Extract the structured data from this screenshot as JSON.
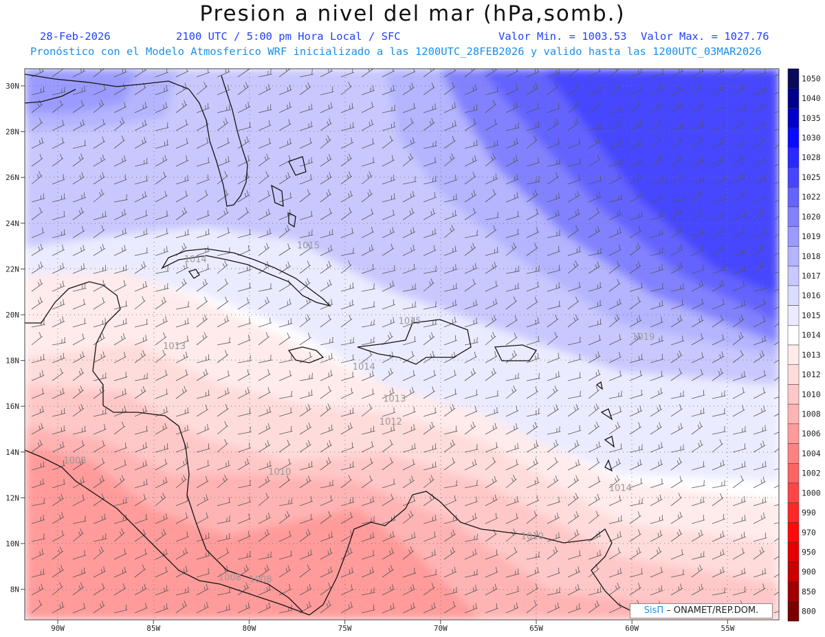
{
  "header": {
    "title": "Presion a nivel del mar (hPa,somb.)",
    "date": "28-Feb-2026",
    "time_info": "2100 UTC / 5:00 pm Hora Local / SFC",
    "min_value": "Valor Min. = 1003.53",
    "max_value": "Valor Max. = 1027.76",
    "model_info": "Pronóstico con el Modelo Atmosferico WRF inicializado a las 1200UTC_28FEB2026 y valido hasta las  1200UTC_03MAR2026"
  },
  "map": {
    "lat_labels": [
      "30N",
      "28N",
      "26N",
      "24N",
      "22N",
      "20N",
      "18N",
      "16N",
      "14N",
      "12N",
      "10N",
      "8N"
    ],
    "lon_labels": [
      "90W",
      "85W",
      "80W",
      "75W",
      "70W",
      "65W",
      "60W",
      "55W"
    ],
    "contour_labels": [
      {
        "text": "1015",
        "lat": 22.9,
        "lon": -77.5
      },
      {
        "text": "1014",
        "lat": 22.3,
        "lon": -83.4
      },
      {
        "text": "1013",
        "lat": 18.5,
        "lon": -84.5
      },
      {
        "text": "1015",
        "lat": 19.6,
        "lon": -72.2
      },
      {
        "text": "1019",
        "lat": 18.9,
        "lon": -60.0
      },
      {
        "text": "1014",
        "lat": 17.6,
        "lon": -74.6
      },
      {
        "text": "1013",
        "lat": 16.2,
        "lon": -73.0
      },
      {
        "text": "1012",
        "lat": 15.2,
        "lon": -73.2
      },
      {
        "text": "1010",
        "lat": 13.0,
        "lon": -79.0
      },
      {
        "text": "1008",
        "lat": 13.5,
        "lon": -89.7
      },
      {
        "text": "1014",
        "lat": 12.3,
        "lon": -61.2
      },
      {
        "text": "1010",
        "lat": 10.2,
        "lon": -65.8
      },
      {
        "text": "1008",
        "lat": 8.4,
        "lon": -81.6
      },
      {
        "text": "1008",
        "lat": 8.3,
        "lon": -80.0
      }
    ]
  },
  "colorbar": {
    "levels": [
      "1050",
      "1040",
      "1035",
      "1030",
      "1028",
      "1025",
      "1022",
      "1020",
      "1019",
      "1018",
      "1017",
      "1016",
      "1015",
      "1014",
      "1013",
      "1012",
      "1010",
      "1008",
      "1006",
      "1004",
      "1002",
      "1000",
      "990",
      "970",
      "950",
      "900",
      "850",
      "800"
    ],
    "colors": [
      "#0a0a5a",
      "#00008c",
      "#0000c8",
      "#0a0aff",
      "#2828ff",
      "#4646ff",
      "#6464ff",
      "#8282ff",
      "#9b9bff",
      "#b4b4ff",
      "#c8c8ff",
      "#dcdcff",
      "#ebebff",
      "#ffffff",
      "#ffebeb",
      "#ffdcdc",
      "#ffc8c8",
      "#ffb4b4",
      "#ff9b9b",
      "#ff8282",
      "#ff6464",
      "#ff4646",
      "#ff2828",
      "#ff0a0a",
      "#e60000",
      "#c80000",
      "#a00000",
      "#780000"
    ]
  },
  "credit": {
    "logo": "SisΠ",
    "text": "– ONAMET/REP.DOM."
  }
}
